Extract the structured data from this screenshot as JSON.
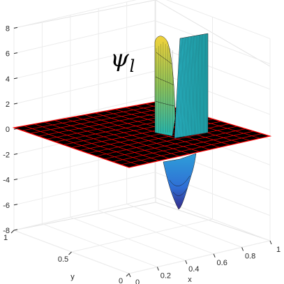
{
  "chart_data": {
    "type": "surface",
    "annotation": "ψ",
    "annotation_sub": "l",
    "xlabel": "x",
    "ylabel": "y",
    "zlabel": "",
    "xlim": [
      0,
      1
    ],
    "ylim": [
      0,
      1
    ],
    "zlim": [
      -8,
      8
    ],
    "x_ticks": [
      "0",
      "0.2",
      "0.4",
      "0.6",
      "0.8",
      "1"
    ],
    "y_ticks": [
      "0",
      "0.5",
      "1"
    ],
    "z_ticks": [
      "-8",
      "-6",
      "-4",
      "-2",
      "0",
      "2",
      "4",
      "6",
      "8"
    ],
    "grid": true,
    "colormap": "parula",
    "plane": {
      "z": 0,
      "face_color": "#000000",
      "edge_color": "#ff0000"
    },
    "features": [
      {
        "name": "positive-lobe",
        "x_center": 0.56,
        "y_range": [
          0.35,
          0.75
        ],
        "peak_z": 7.5
      },
      {
        "name": "vertical-wall",
        "x": 0.6,
        "y_range": [
          0.55,
          1.0
        ],
        "z_range": [
          0,
          7.6
        ]
      },
      {
        "name": "negative-trough",
        "x_center": 0.58,
        "y_range": [
          0.3,
          0.55
        ],
        "min_z": -6.3
      }
    ]
  }
}
